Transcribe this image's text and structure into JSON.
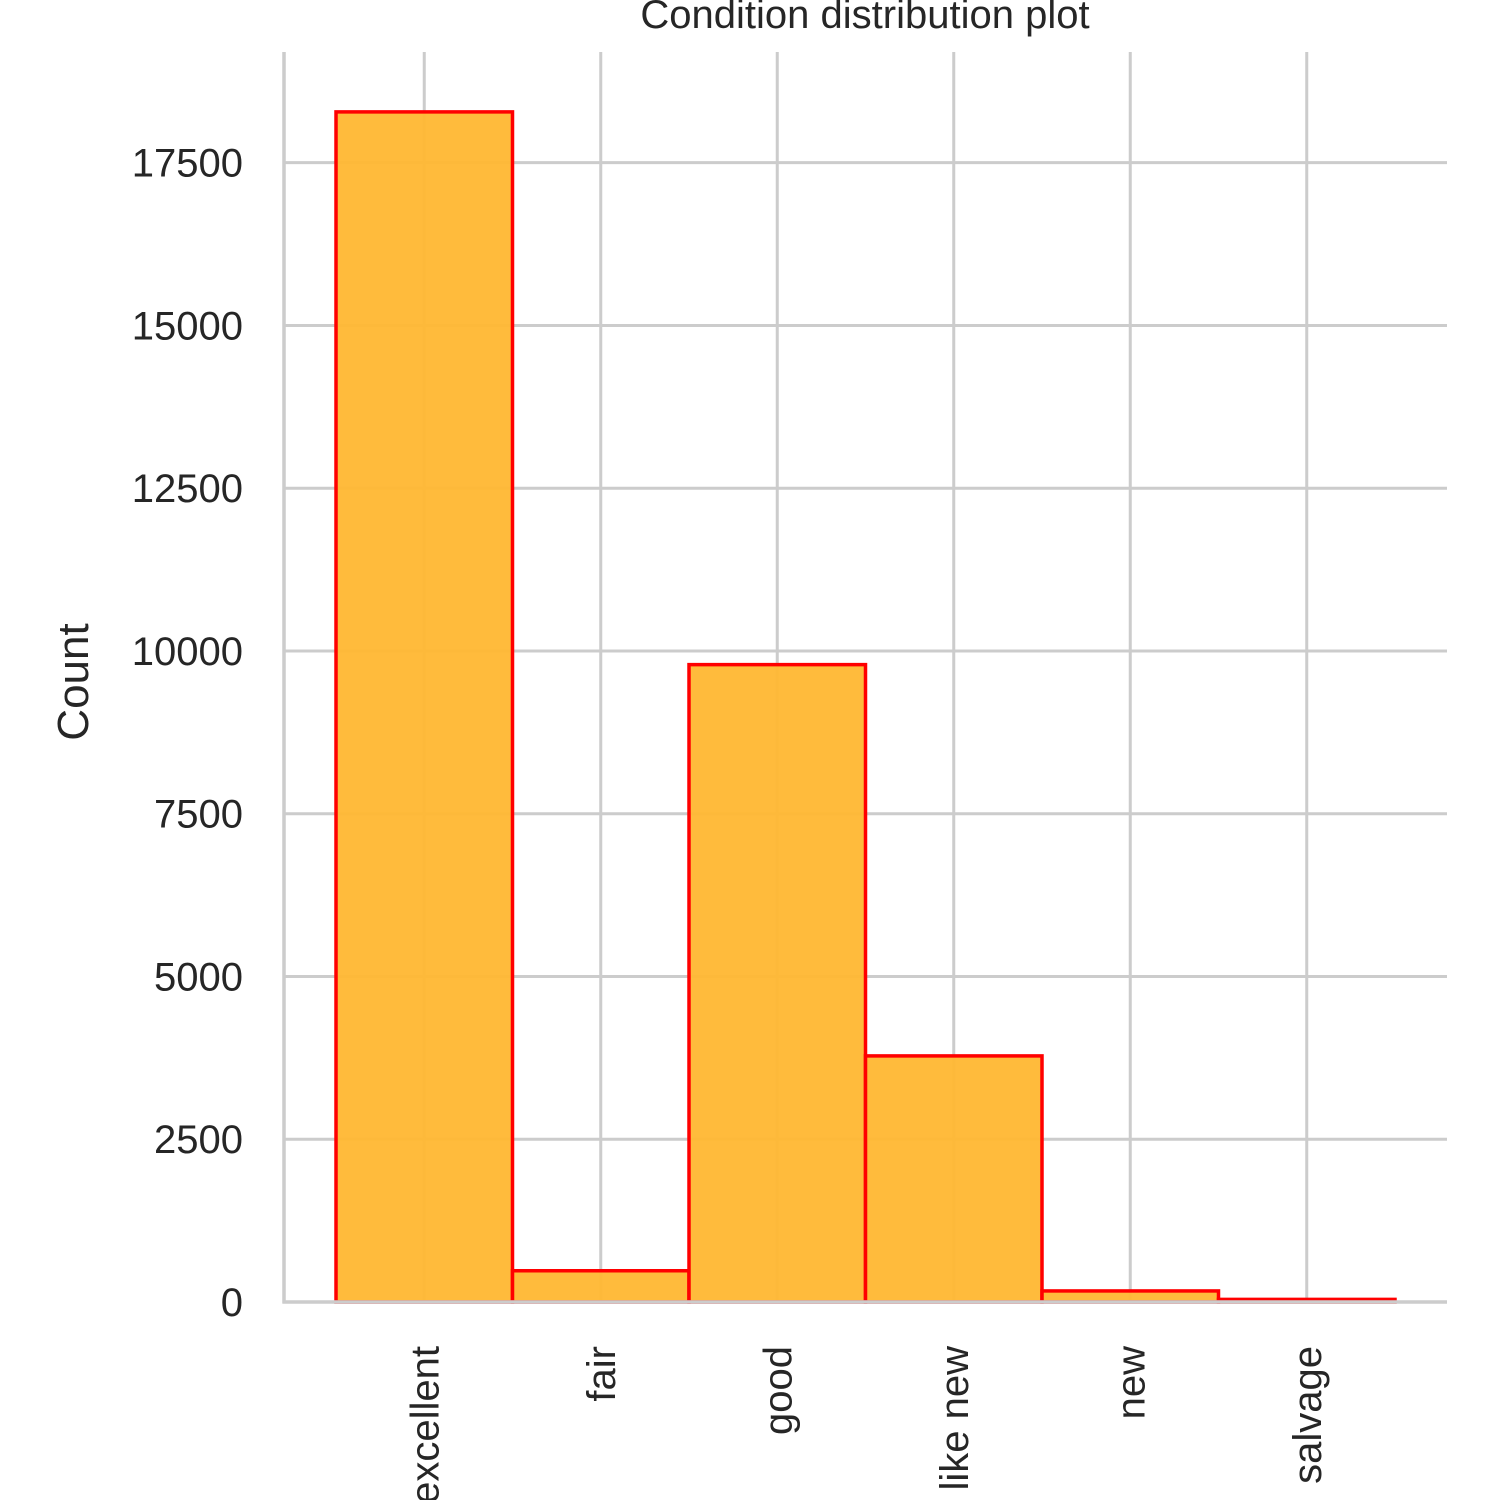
{
  "chart_data": {
    "type": "bar",
    "title": "Condition distribution plot",
    "xlabel": "",
    "ylabel": "Count",
    "categories": [
      "excellent",
      "fair",
      "good",
      "like new",
      "new",
      "salvage"
    ],
    "values": [
      18280,
      480,
      9790,
      3780,
      170,
      40
    ],
    "ylim": [
      0,
      19200
    ],
    "yticks": [
      0,
      2500,
      5000,
      7500,
      10000,
      12500,
      15000,
      17500
    ],
    "grid": true,
    "legend": "none",
    "colors": {
      "bar_fill": "#ffb732",
      "bar_edge": "#ff0000",
      "grid": "#cccccc",
      "text": "#262626"
    }
  }
}
